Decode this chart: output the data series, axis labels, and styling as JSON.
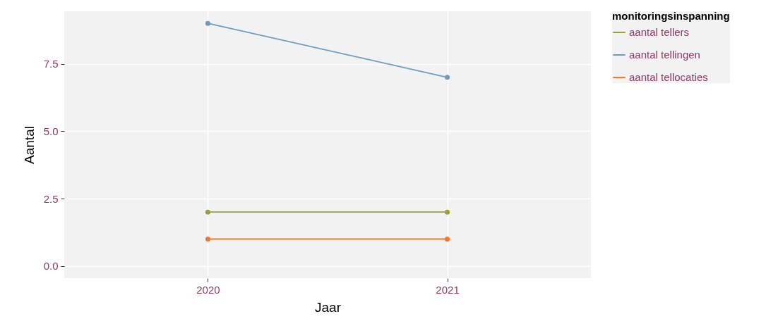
{
  "chart_data": {
    "type": "line",
    "xlabel": "Jaar",
    "ylabel": "Aantal",
    "legend_title": "monitoringsinspanning",
    "categories": [
      "2020",
      "2021"
    ],
    "series": [
      {
        "name": "aantal tellers",
        "color": "#9aa237",
        "values": [
          2,
          2
        ]
      },
      {
        "name": "aantal tellingen",
        "color": "#6e9cbf",
        "values": [
          9,
          7
        ]
      },
      {
        "name": "aantal tellocaties",
        "color": "#f07a30",
        "values": [
          1,
          1
        ]
      }
    ],
    "ylim": [
      -0.45,
      9.45
    ],
    "yticks": [
      {
        "value": 0,
        "label": "0.0"
      },
      {
        "value": 2.5,
        "label": "2.5"
      },
      {
        "value": 5,
        "label": "5.0"
      },
      {
        "value": 7.5,
        "label": "7.5"
      }
    ],
    "grid": true,
    "legend": "right",
    "marker": "circle",
    "line_style": "solid"
  }
}
